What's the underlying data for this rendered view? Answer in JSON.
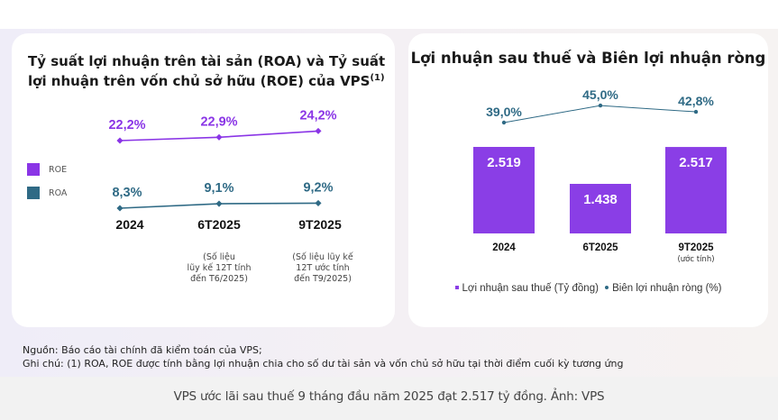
{
  "colors": {
    "roe": "#8a35e6",
    "roa": "#2f6a85",
    "bar": "#8a3ee6",
    "margin_line": "#2f6a85"
  },
  "chart_data": [
    {
      "type": "line",
      "title": "Tỷ suất lợi nhuận trên tài sản (ROA) và Tỷ suất lợi nhuận trên vốn chủ sở hữu (ROE) của VPS",
      "title_superscript": "(1)",
      "categories": [
        "2024",
        "6T2025",
        "9T2025"
      ],
      "category_notes": [
        "",
        "(Số liệu\nlũy kế 12T tính\nđến T6/2025)",
        "(Số liệu lũy kế\n12T ước tính\nđến T9/2025)"
      ],
      "series": [
        {
          "name": "ROE",
          "values": [
            22.2,
            22.9,
            24.2
          ],
          "labels": [
            "22,2%",
            "22,9%",
            "24,2%"
          ]
        },
        {
          "name": "ROA",
          "values": [
            8.3,
            9.1,
            9.2
          ],
          "labels": [
            "8,3%",
            "9,1%",
            "9,2%"
          ]
        }
      ],
      "legend": [
        "ROE",
        "ROA"
      ],
      "legend_position": "left",
      "xlabel": "",
      "ylabel": "",
      "grid": false
    },
    {
      "type": "bar",
      "title": "Lợi nhuận sau thuế và Biên lợi nhuận ròng",
      "categories": [
        "2024",
        "6T2025",
        "9T2025"
      ],
      "category_sublabels": [
        "",
        "",
        "(ước tính)"
      ],
      "series": [
        {
          "name": "Lợi nhuận sau thuế (Tỷ đồng)",
          "type": "bar",
          "values": [
            2519,
            1438,
            2517
          ],
          "labels": [
            "2.519",
            "1.438",
            "2.517"
          ]
        },
        {
          "name": "Biên lợi nhuận ròng (%)",
          "type": "line",
          "values": [
            39.0,
            45.0,
            42.8
          ],
          "labels": [
            "39,0%",
            "45,0%",
            "42,8%"
          ]
        }
      ],
      "legend": [
        "Lợi nhuận sau thuế (Tỷ đồng)",
        "Biên lợi nhuận ròng (%)"
      ],
      "legend_position": "bottom",
      "xlabel": "",
      "ylabel": "",
      "grid": false
    }
  ],
  "footnotes": {
    "source": "Nguồn: Báo cáo tài chính đã kiểm toán của VPS;",
    "note": "Ghi chú: (1) ROA, ROE được tính bằng lợi nhuận chia cho số dư tài sản và vốn chủ sở hữu tại thời điểm cuối kỳ tương ứng"
  },
  "caption": "VPS ước lãi sau thuế 9 tháng đầu năm 2025 đạt 2.517 tỷ đồng. Ảnh: VPS"
}
